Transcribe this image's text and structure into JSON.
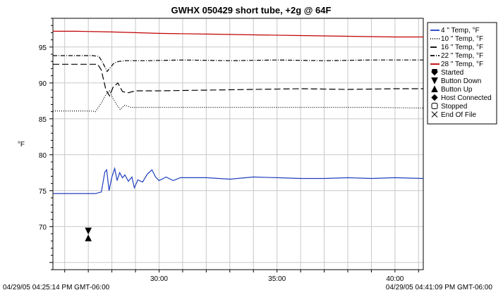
{
  "chart_data": {
    "type": "line",
    "title": "GWHX 050429 short tube, +2g @ 64F",
    "ylabel": "°F",
    "xlabel": "",
    "time_start_label": "04/29/05 04:25:14 PM GMT-06:00",
    "time_end_label": "04/29/05 04:41:09 PM GMT-06:00",
    "xlim": [
      25.5,
      41.2
    ],
    "ylim": [
      64,
      99
    ],
    "x_ticks": [
      {
        "value": 30,
        "label": "30:00"
      },
      {
        "value": 35,
        "label": "35:00"
      },
      {
        "value": 40,
        "label": "40:00"
      }
    ],
    "y_ticks": [
      {
        "value": 70,
        "label": "70"
      },
      {
        "value": 75,
        "label": "75"
      },
      {
        "value": 80,
        "label": "80"
      },
      {
        "value": 85,
        "label": "85"
      },
      {
        "value": 90,
        "label": "90"
      },
      {
        "value": 95,
        "label": "95"
      }
    ],
    "grid": true,
    "legend_position": "right",
    "series": [
      {
        "name": "4 \" Temp, °F",
        "color": "#1f3fbf",
        "dash": "solid",
        "points": [
          [
            25.5,
            74.6
          ],
          [
            26.5,
            74.6
          ],
          [
            27.3,
            74.6
          ],
          [
            27.55,
            74.8
          ],
          [
            27.7,
            77.6
          ],
          [
            27.78,
            77.9
          ],
          [
            27.88,
            75.0
          ],
          [
            28.0,
            76.9
          ],
          [
            28.12,
            78.1
          ],
          [
            28.22,
            76.4
          ],
          [
            28.33,
            77.5
          ],
          [
            28.45,
            76.8
          ],
          [
            28.55,
            77.2
          ],
          [
            28.7,
            76.3
          ],
          [
            28.85,
            76.9
          ],
          [
            28.95,
            75.4
          ],
          [
            29.1,
            76.5
          ],
          [
            29.3,
            76.2
          ],
          [
            29.5,
            77.3
          ],
          [
            29.7,
            77.9
          ],
          [
            29.85,
            76.9
          ],
          [
            30.0,
            76.4
          ],
          [
            30.3,
            76.9
          ],
          [
            30.6,
            76.4
          ],
          [
            30.9,
            76.8
          ],
          [
            31.3,
            76.8
          ],
          [
            32.0,
            76.8
          ],
          [
            33.0,
            76.6
          ],
          [
            34.0,
            76.9
          ],
          [
            35.0,
            76.8
          ],
          [
            36.0,
            76.7
          ],
          [
            37.0,
            76.7
          ],
          [
            38.0,
            76.8
          ],
          [
            39.0,
            76.7
          ],
          [
            40.0,
            76.8
          ],
          [
            41.2,
            76.7
          ]
        ]
      },
      {
        "name": "10 \" Temp, °F",
        "color": "#000000",
        "dash": "1,2",
        "points": [
          [
            25.5,
            86.1
          ],
          [
            27.1,
            86.1
          ],
          [
            27.3,
            86.0
          ],
          [
            27.55,
            87.2
          ],
          [
            27.75,
            88.4
          ],
          [
            27.9,
            88.9
          ],
          [
            28.0,
            88.1
          ],
          [
            28.2,
            87.0
          ],
          [
            28.35,
            86.3
          ],
          [
            28.55,
            86.9
          ],
          [
            28.8,
            86.6
          ],
          [
            29.3,
            86.6
          ],
          [
            31.0,
            86.6
          ],
          [
            33.0,
            86.6
          ],
          [
            35.0,
            86.6
          ],
          [
            37.0,
            86.6
          ],
          [
            39.0,
            86.6
          ],
          [
            41.2,
            86.5
          ]
        ]
      },
      {
        "name": "16 \" Temp, °F",
        "color": "#000000",
        "dash": "9,4",
        "points": [
          [
            25.5,
            92.6
          ],
          [
            27.0,
            92.6
          ],
          [
            27.4,
            92.6
          ],
          [
            27.55,
            91.8
          ],
          [
            27.75,
            89.0
          ],
          [
            27.9,
            88.2
          ],
          [
            28.05,
            89.4
          ],
          [
            28.25,
            90.0
          ],
          [
            28.45,
            88.8
          ],
          [
            28.65,
            88.6
          ],
          [
            29.0,
            88.9
          ],
          [
            30.0,
            88.9
          ],
          [
            32.0,
            89.0
          ],
          [
            34.0,
            89.1
          ],
          [
            36.0,
            89.2
          ],
          [
            38.0,
            89.1
          ],
          [
            40.0,
            89.2
          ],
          [
            41.2,
            89.2
          ]
        ]
      },
      {
        "name": "22 \" Temp, °F",
        "color": "#000000",
        "dash": "6,2,1,2",
        "points": [
          [
            25.5,
            93.8
          ],
          [
            27.2,
            93.8
          ],
          [
            27.45,
            93.7
          ],
          [
            27.6,
            92.9
          ],
          [
            27.8,
            91.6
          ],
          [
            27.95,
            92.2
          ],
          [
            28.1,
            92.8
          ],
          [
            28.3,
            93.0
          ],
          [
            28.6,
            93.1
          ],
          [
            29.5,
            93.1
          ],
          [
            31.0,
            93.2
          ],
          [
            33.0,
            93.1
          ],
          [
            35.0,
            93.2
          ],
          [
            37.0,
            93.1
          ],
          [
            39.0,
            93.2
          ],
          [
            41.2,
            93.2
          ]
        ]
      },
      {
        "name": "28 \" Temp, °F",
        "color": "#c00000",
        "dash": "solid",
        "points": [
          [
            25.5,
            97.2
          ],
          [
            26.5,
            97.2
          ],
          [
            28.0,
            97.1
          ],
          [
            30.0,
            96.9
          ],
          [
            32.0,
            96.8
          ],
          [
            34.0,
            96.7
          ],
          [
            36.0,
            96.6
          ],
          [
            38.0,
            96.5
          ],
          [
            40.0,
            96.4
          ],
          [
            41.2,
            96.4
          ]
        ]
      }
    ],
    "events": [
      {
        "name": "Started",
        "symbol": "started",
        "points": []
      },
      {
        "name": "Button Down",
        "symbol": "triangle-down",
        "points": [
          [
            27.0,
            69.4
          ]
        ]
      },
      {
        "name": "Button Up",
        "symbol": "triangle-up",
        "points": [
          [
            27.0,
            68.4
          ]
        ]
      },
      {
        "name": "Host Connected",
        "symbol": "diamond",
        "points": []
      },
      {
        "name": "Stopped",
        "symbol": "square-open",
        "points": []
      },
      {
        "name": "End Of File",
        "symbol": "x",
        "points": []
      }
    ]
  }
}
